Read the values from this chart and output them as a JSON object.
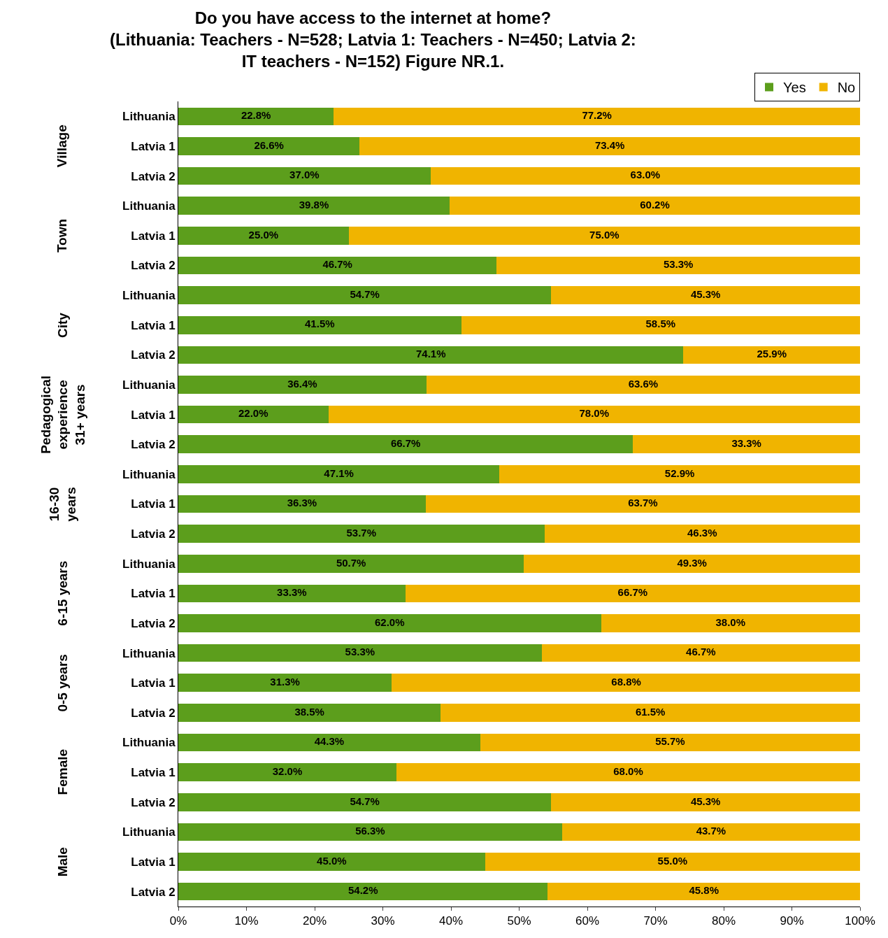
{
  "chart_data": {
    "type": "bar",
    "orientation": "horizontal",
    "stacked": true,
    "title": "Do you have access to the internet at home?\n(Lithuania: Teachers - N=528; Latvia 1: Teachers - N=450; Latvia 2:\nIT teachers - N=152) Figure NR.1.",
    "categories": [
      "Lithuania",
      "Latvia 1",
      "Latvia 2",
      "Lithuania",
      "Latvia 1",
      "Latvia 2",
      "Lithuania",
      "Latvia 1",
      "Latvia 2",
      "Lithuania",
      "Latvia 1",
      "Latvia 2",
      "Lithuania",
      "Latvia 1",
      "Latvia 2",
      "Lithuania",
      "Latvia 1",
      "Latvia 2",
      "Lithuania",
      "Latvia 1",
      "Latvia 2",
      "Lithuania",
      "Latvia 1",
      "Latvia 2",
      "Lithuania",
      "Latvia 1",
      "Latvia 2"
    ],
    "annotations": [
      "Village",
      "Town",
      "City",
      "Pedagogical\nexperience\n31+ years",
      "16-30\nyears",
      "6-15 years",
      "0-5 years",
      "Female",
      "Male"
    ],
    "series": [
      {
        "name": "Yes",
        "color": "#5c9e1c",
        "values": [
          22.8,
          26.6,
          37.0,
          39.8,
          25.0,
          46.7,
          54.7,
          41.5,
          74.1,
          36.4,
          22.0,
          66.7,
          47.1,
          36.3,
          53.7,
          50.7,
          33.3,
          62.0,
          53.3,
          31.3,
          38.5,
          44.3,
          32.0,
          54.7,
          56.3,
          45.0,
          54.2
        ],
        "value_labels": [
          "22.8%",
          "26.6%",
          "37.0%",
          "39.8%",
          "25.0%",
          "46.7%",
          "54.7%",
          "41.5%",
          "74.1%",
          "36.4%",
          "22.0%",
          "66.7%",
          "47.1%",
          "36.3%",
          "53.7%",
          "50.7%",
          "33.3%",
          "62.0%",
          "53.3%",
          "31.3%",
          "38.5%",
          "44.3%",
          "32.0%",
          "54.7%",
          "56.3%",
          "45.0%",
          "54.2%"
        ]
      },
      {
        "name": "No",
        "color": "#f0b400",
        "values": [
          77.2,
          73.4,
          63.0,
          60.2,
          75.0,
          53.3,
          45.3,
          58.5,
          25.9,
          63.6,
          78.0,
          33.3,
          52.9,
          63.7,
          46.3,
          49.3,
          66.7,
          38.0,
          46.7,
          68.8,
          61.5,
          55.7,
          68.0,
          45.3,
          43.7,
          55.0,
          45.8
        ],
        "value_labels": [
          "77.2%",
          "73.4%",
          "63.0%",
          "60.2%",
          "75.0%",
          "53.3%",
          "45.3%",
          "58.5%",
          "25.9%",
          "63.6%",
          "78.0%",
          "33.3%",
          "52.9%",
          "63.7%",
          "46.3%",
          "49.3%",
          "66.7%",
          "38.0%",
          "46.7%",
          "68.8%",
          "61.5%",
          "55.7%",
          "68.0%",
          "45.3%",
          "43.7%",
          "55.0%",
          "45.8%"
        ]
      }
    ],
    "xlim": [
      0,
      100
    ],
    "xticks": [
      {
        "value": 0,
        "label": "0%"
      },
      {
        "value": 10,
        "label": "10%"
      },
      {
        "value": 20,
        "label": "20%"
      },
      {
        "value": 30,
        "label": "30%"
      },
      {
        "value": 40,
        "label": "40%"
      },
      {
        "value": 50,
        "label": "50%"
      },
      {
        "value": 60,
        "label": "60%"
      },
      {
        "value": 70,
        "label": "70%"
      },
      {
        "value": 80,
        "label": "80%"
      },
      {
        "value": 90,
        "label": "90%"
      },
      {
        "value": 100,
        "label": "100%"
      }
    ],
    "grid": false,
    "legend": "top right"
  }
}
